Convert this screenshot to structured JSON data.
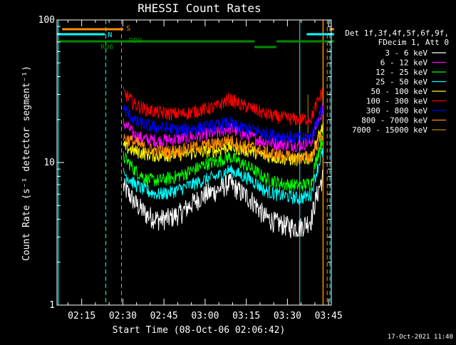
{
  "chart_data": {
    "type": "line",
    "title": "RHESSI Count Rates",
    "xlabel": "Start Time (08-Oct-06 02:06:42)",
    "ylabel": "Count Rate (s⁻¹ detector segment⁻¹)",
    "y_scale": "log",
    "ylim": [
      1,
      100
    ],
    "y_ticks": [
      "1",
      "10",
      "100"
    ],
    "xlim_minutes_after_0206": [
      0,
      100
    ],
    "x_ticks": [
      "02:15",
      "02:30",
      "02:45",
      "03:00",
      "03:15",
      "03:30",
      "03:45"
    ],
    "x_tick_minutes": [
      9,
      24,
      39,
      54,
      69,
      84,
      99
    ],
    "grid": false,
    "legend_placement": "right",
    "legend_header": [
      "Det 1f,3f,4f,5f,6f,9f,",
      "FDecim 1, Att 0"
    ],
    "footer_timestamp": "17-Oct-2021 11:40",
    "annotations": {
      "S": "S",
      "N": "N",
      "RD6": "RD6",
      "RD0": "RD0"
    },
    "flag_lines": {
      "saa_minutes": [
        24.2,
        101
      ],
      "night_minutes": [
        0,
        17.5,
        91,
        101
      ],
      "decim_high_minutes": [
        0,
        72
      ],
      "decim_low_minutes": [
        72,
        80
      ],
      "decim_high2_minutes": [
        80,
        101
      ]
    },
    "vertical_markers_minutes": {
      "cyan_solid": [
        0.5,
        88.5
      ],
      "cyan_dashed": [
        17.8,
        99.5
      ],
      "orange_dashed": [
        23.5,
        98.5
      ],
      "orange_solid": [
        97
      ]
    },
    "x_start_minute": 24.2,
    "x_end_minute": 97,
    "series": [
      {
        "name": "3 - 6 keV",
        "color": "#ffffff",
        "profile": [
          6.8,
          5.2,
          4.3,
          4.0,
          4.1,
          4.5,
          5.3,
          6.0,
          6.4,
          7.2,
          6.2,
          5.4,
          4.2,
          3.8,
          3.6,
          3.5,
          4.0,
          8.0
        ]
      },
      {
        "name": "6 - 12 keV",
        "color": "#ff00ff",
        "profile": [
          19,
          15.5,
          14.5,
          14.2,
          14.5,
          14.8,
          15.3,
          15.8,
          16.2,
          17.5,
          16.0,
          15.0,
          14.0,
          13.6,
          13.4,
          13.3,
          14.0,
          24
        ]
      },
      {
        "name": "12 - 25 keV",
        "color": "#00ff00",
        "profile": [
          11,
          8.8,
          7.6,
          7.5,
          7.8,
          8.2,
          8.9,
          9.8,
          10.2,
          11.0,
          10.0,
          9.0,
          7.8,
          7.3,
          7.0,
          6.9,
          7.2,
          15
        ]
      },
      {
        "name": "25 - 50 keV",
        "color": "#00ffff",
        "profile": [
          8.5,
          7.0,
          6.3,
          6.0,
          6.2,
          6.6,
          7.1,
          7.6,
          8.0,
          8.9,
          8.2,
          7.5,
          6.4,
          6.0,
          5.8,
          5.6,
          6.0,
          12
        ]
      },
      {
        "name": "50 - 100 keV",
        "color": "#ffff00",
        "profile": [
          13,
          12.0,
          11.5,
          11.2,
          11.3,
          11.5,
          11.8,
          12.0,
          12.2,
          13.0,
          12.4,
          12.0,
          11.2,
          10.9,
          10.6,
          10.5,
          10.8,
          18
        ]
      },
      {
        "name": "100 - 300 keV",
        "color": "#ff0000",
        "profile": [
          31,
          25.5,
          23.5,
          22.5,
          22.0,
          22.0,
          22.8,
          23.8,
          24.8,
          28.0,
          25.5,
          24.0,
          22.0,
          21.0,
          20.5,
          20.0,
          20.5,
          32
        ]
      },
      {
        "name": "300 - 800 keV",
        "color": "#0000ff",
        "profile": [
          24,
          19.5,
          18.2,
          17.6,
          17.2,
          17.0,
          17.3,
          17.8,
          18.2,
          19.0,
          17.5,
          17.2,
          16.0,
          15.5,
          15.2,
          14.8,
          15.2,
          24
        ]
      },
      {
        "name": "800 - 7000 keV",
        "color": "#ff8c00",
        "profile": [
          15,
          13.8,
          12.5,
          12.0,
          12.0,
          12.3,
          12.8,
          13.2,
          13.6,
          14.5,
          13.2,
          12.8,
          11.8,
          11.4,
          11.0,
          10.8,
          11.0,
          16
        ]
      },
      {
        "name": "7000 - 15000 keV",
        "color": "#b8860b",
        "profile": []
      }
    ]
  }
}
